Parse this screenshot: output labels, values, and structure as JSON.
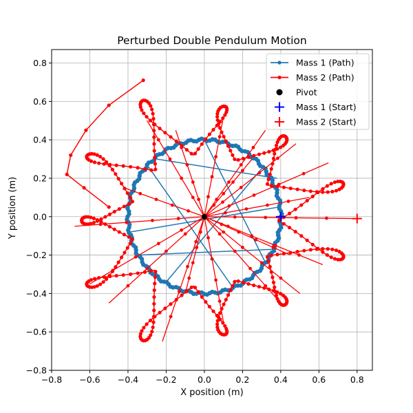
{
  "chart_data": {
    "type": "line",
    "title": "Perturbed Double Pendulum Motion",
    "xlabel": "X position (m)",
    "ylabel": "Y position (m)",
    "xlim": [
      -0.8,
      0.88
    ],
    "ylim": [
      -0.8,
      0.87
    ],
    "x_ticks": [
      -0.8,
      -0.6,
      -0.4,
      -0.2,
      0.0,
      0.2,
      0.4,
      0.6,
      0.8
    ],
    "y_ticks": [
      -0.8,
      -0.6,
      -0.4,
      -0.2,
      0.0,
      0.2,
      0.4,
      0.6,
      0.8
    ],
    "x_tick_labels": [
      "−0.8",
      "−0.6",
      "−0.4",
      "−0.2",
      "0.0",
      "0.2",
      "0.4",
      "0.6",
      "0.8"
    ],
    "y_tick_labels": [
      "−0.8",
      "−0.6",
      "−0.4",
      "−0.2",
      "0.0",
      "0.2",
      "0.4",
      "0.6",
      "0.8"
    ],
    "grid": true,
    "legend_position": "top-right",
    "series": [
      {
        "name": "Mass 1 (Path)",
        "color": "#1f77b4",
        "marker": "dot",
        "model": {
          "kind": "circle",
          "radius": 0.4
        },
        "chords": [
          [
            0.0,
            0.4,
            0.32,
            -0.24
          ],
          [
            -0.25,
            0.3,
            0.38,
            0.2
          ],
          [
            0.3,
            0.25,
            -0.2,
            -0.34
          ],
          [
            -0.35,
            -0.2,
            0.36,
            -0.17
          ],
          [
            0.15,
            -0.37,
            -0.3,
            0.27
          ],
          [
            0.39,
            0.05,
            -0.39,
            -0.08
          ]
        ]
      },
      {
        "name": "Mass 2 (Path)",
        "color": "#ff0000",
        "marker": "dot",
        "model": {
          "kind": "rose",
          "lobes": 11,
          "inner_radius": 0.4,
          "amplitude": 0.4,
          "spread": 0.55
        },
        "outer_loop": [
          [
            -0.32,
            0.71
          ],
          [
            -0.5,
            0.58
          ],
          [
            -0.62,
            0.45
          ],
          [
            -0.7,
            0.32
          ],
          [
            -0.72,
            0.22
          ],
          [
            -0.63,
            0.15
          ],
          [
            -0.5,
            0.05
          ]
        ],
        "spokes": [
          [
            0.8,
            -0.01
          ],
          [
            0.65,
            0.28
          ],
          [
            0.48,
            0.38
          ],
          [
            0.1,
            0.52
          ],
          [
            -0.15,
            0.45
          ],
          [
            -0.42,
            0.15
          ],
          [
            -0.68,
            -0.05
          ],
          [
            -0.6,
            -0.35
          ],
          [
            -0.22,
            -0.65
          ],
          [
            0.1,
            -0.55
          ],
          [
            0.4,
            -0.45
          ],
          [
            0.62,
            -0.25
          ],
          [
            0.32,
            0.45
          ],
          [
            -0.3,
            0.5
          ],
          [
            -0.5,
            -0.45
          ],
          [
            0.55,
            0.1
          ],
          [
            0.5,
            -0.4
          ],
          [
            -0.1,
            -0.4
          ],
          [
            0.25,
            0.3
          ],
          [
            0.45,
            -0.2
          ]
        ]
      }
    ],
    "points": [
      {
        "name": "Pivot",
        "x": 0.0,
        "y": 0.0,
        "color": "#000000",
        "marker": "circle"
      },
      {
        "name": "Mass 1 (Start)",
        "x": 0.4,
        "y": 0.0,
        "color": "#0000ff",
        "marker": "plus"
      },
      {
        "name": "Mass 2 (Start)",
        "x": 0.8,
        "y": -0.01,
        "color": "#ff0000",
        "marker": "plus"
      }
    ]
  }
}
